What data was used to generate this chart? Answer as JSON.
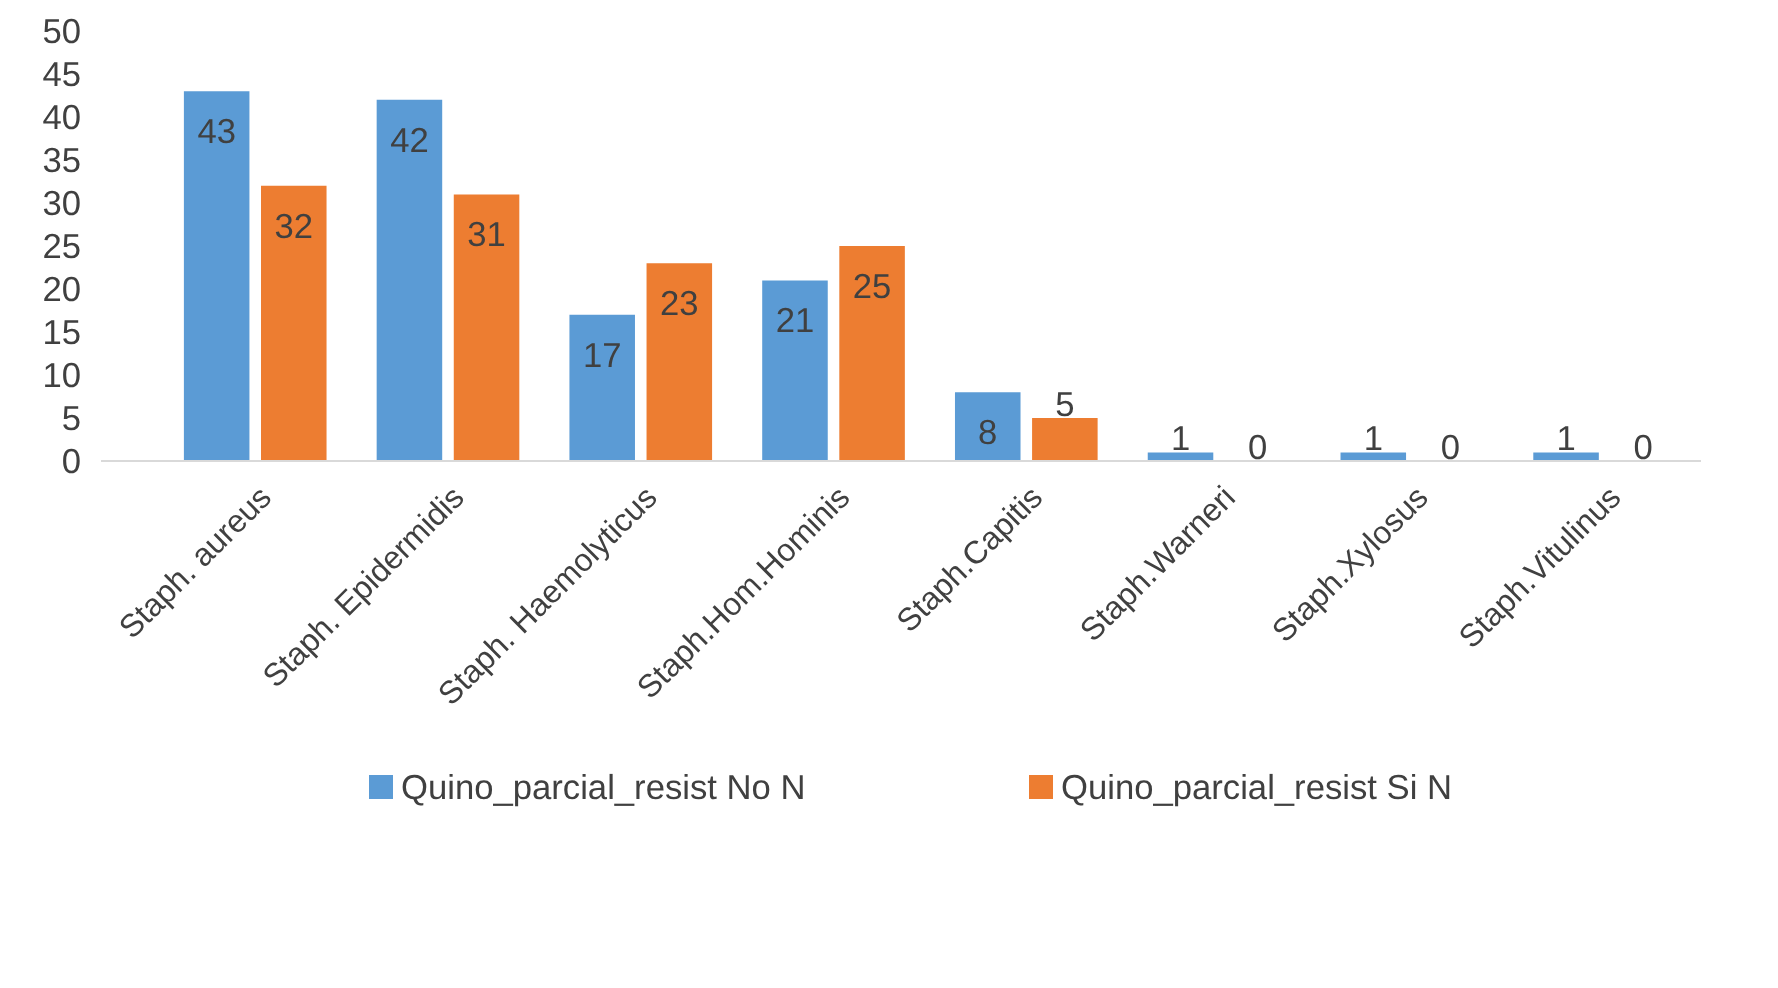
{
  "chart_data": {
    "type": "bar",
    "categories": [
      "Staph. aureus",
      "Staph. Epidermidis",
      "Staph. Haemolyticus",
      "Staph.Hom.Hominis",
      "Staph.Capitis",
      "Staph.Warneri",
      "Staph.Xylosus",
      "Staph.Vitulinus"
    ],
    "series": [
      {
        "name": "Quino_parcial_resist No N",
        "color": "#5b9bd5",
        "values": [
          43,
          42,
          17,
          21,
          8,
          1,
          1,
          1
        ]
      },
      {
        "name": "Quino_parcial_resist Si N",
        "color": "#ed7d31",
        "values": [
          32,
          31,
          23,
          25,
          5,
          0,
          0,
          0
        ]
      }
    ],
    "ylim": [
      0,
      50
    ],
    "yticks": [
      0,
      5,
      10,
      15,
      20,
      25,
      30,
      35,
      40,
      45,
      50
    ],
    "data_labels": true,
    "legend": "bottom"
  }
}
